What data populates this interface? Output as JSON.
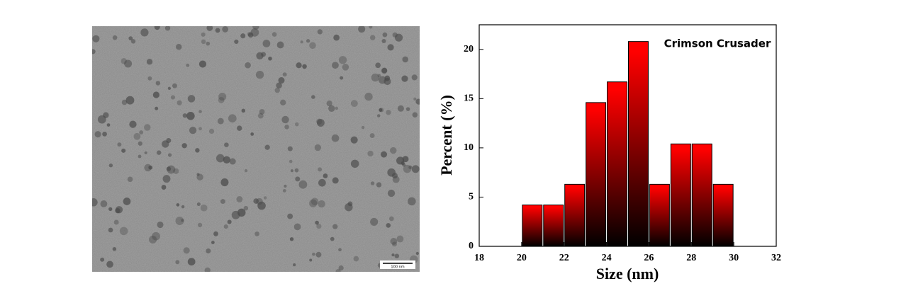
{
  "image": {
    "scale_bar": "100 nm"
  },
  "chart_data": {
    "type": "histogram",
    "annotation": "Crimson Crusader",
    "xlabel": "Size (nm)",
    "ylabel": "Percent (%)",
    "bins": [
      20,
      21,
      22,
      23,
      24,
      25,
      26,
      27,
      28,
      29,
      30
    ],
    "values": [
      4.2,
      4.2,
      6.3,
      14.6,
      16.7,
      20.8,
      6.3,
      10.4,
      10.4,
      6.3
    ],
    "color": "#ff0000",
    "xlim": [
      18,
      32
    ],
    "xticks": [
      18,
      20,
      22,
      24,
      26,
      28,
      30,
      32
    ],
    "ylim": [
      0,
      22.5
    ],
    "yticks": [
      0,
      5,
      10,
      15,
      20
    ]
  }
}
